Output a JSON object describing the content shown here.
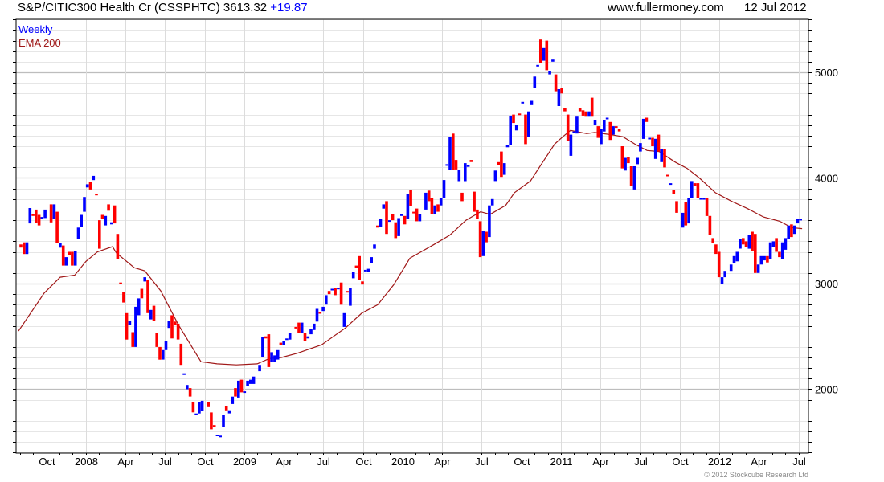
{
  "header": {
    "title": "S&P/CITIC300 Health Cr (CSSPHTC) 3613.32",
    "change": "+19.87",
    "site": "www.fullermoney.com",
    "date": "12 Jul 2012"
  },
  "legend": {
    "weekly": "Weekly",
    "ema": "EMA 200"
  },
  "copyright": "© 2012 Stockcube Research Ltd",
  "colors": {
    "up": "#0000ff",
    "down": "#ff0000",
    "ema": "#a01818",
    "change": "#0000ff"
  },
  "chart_data": {
    "type": "candlestick",
    "title": "S&P/CITIC300 Health Cr (CSSPHTC) 3613.32 +19.87",
    "ylim": [
      1395,
      5502
    ],
    "yticks": [
      2000,
      3000,
      4000,
      5000
    ],
    "ytick_labels": [
      "2000",
      "3000",
      "4000",
      "5000"
    ],
    "grid": true,
    "x_unit": "week index",
    "xlim": [
      -1.6,
      260.6
    ],
    "xtick_first_week": 8.4,
    "xtick_spacing_weeks": 13.1,
    "xtick_labels": [
      "Oct",
      "2008",
      "Apr",
      "Jul",
      "Oct",
      "2009",
      "Apr",
      "Jul",
      "Oct",
      "2010",
      "Apr",
      "Jul",
      "Oct",
      "2011",
      "Apr",
      "Jul",
      "Oct",
      "2012",
      "Apr",
      "Jul"
    ],
    "legend": [
      "Weekly",
      "EMA 200"
    ],
    "legend_placement": "top-left",
    "weekly_open_close": [
      [
        3370,
        3340
      ],
      [
        3390,
        3280
      ],
      [
        3280,
        3390
      ],
      [
        3570,
        3715
      ],
      [
        3660,
        3640
      ],
      [
        3700,
        3570
      ],
      [
        3650,
        3550
      ],
      [
        3610,
        3630
      ],
      [
        3620,
        3700
      ],
      null,
      [
        3750,
        3580
      ],
      [
        3610,
        3750
      ],
      [
        3680,
        3380
      ],
      [
        3340,
        3380
      ],
      [
        3360,
        3170
      ],
      [
        3170,
        3250
      ],
      [
        3300,
        3270
      ],
      [
        3300,
        3170
      ],
      [
        3170,
        3310
      ],
      [
        3420,
        3530
      ],
      [
        3540,
        3650
      ],
      [
        3680,
        3820
      ],
      [
        3910,
        3940
      ],
      [
        3960,
        3890
      ],
      [
        3980,
        4020
      ],
      [
        3850,
        3840
      ],
      [
        3600,
        3330
      ],
      [
        3650,
        3610
      ],
      [
        3550,
        3640
      ],
      [
        3750,
        3690
      ],
      [
        3560,
        3580
      ],
      [
        3740,
        3570
      ],
      [
        3470,
        3230
      ],
      [
        3010,
        3000
      ],
      [
        2920,
        2820
      ],
      [
        2720,
        2470
      ],
      [
        2610,
        2650
      ],
      [
        2540,
        2400
      ],
      [
        2400,
        2780
      ],
      [
        2700,
        2860
      ],
      [
        2950,
        2860
      ],
      [
        3020,
        3060
      ],
      [
        3030,
        2720
      ],
      [
        2660,
        2750
      ],
      [
        2790,
        2650
      ],
      [
        2530,
        2400
      ],
      [
        2400,
        2280
      ],
      [
        2280,
        2370
      ],
      [
        2370,
        2460
      ],
      [
        2580,
        2650
      ],
      [
        2700,
        2480
      ],
      [
        2640,
        2610
      ],
      [
        2620,
        2470
      ],
      [
        2430,
        2230
      ],
      [
        2140,
        2150
      ],
      [
        2000,
        2040
      ],
      [
        2010,
        1930
      ],
      [
        1880,
        1780
      ],
      [
        1760,
        1770
      ],
      [
        1770,
        1880
      ],
      [
        1790,
        1890
      ],
      null,
      [
        1880,
        1830
      ],
      [
        1780,
        1620
      ],
      [
        1660,
        1640
      ],
      [
        1560,
        1570
      ],
      [
        1550,
        1560
      ],
      [
        1640,
        1760
      ],
      [
        1840,
        1800
      ],
      [
        1770,
        1800
      ],
      [
        1860,
        1930
      ],
      [
        2010,
        1930
      ],
      [
        1920,
        2080
      ],
      [
        2090,
        1970
      ],
      [
        1970,
        1980
      ],
      [
        2030,
        2080
      ],
      [
        2050,
        2090
      ],
      [
        2050,
        2120
      ],
      null,
      [
        2170,
        2230
      ],
      [
        2300,
        2490
      ],
      [
        2500,
        2480
      ],
      [
        2520,
        2210
      ],
      [
        2260,
        2350
      ],
      [
        2260,
        2320
      ],
      [
        2280,
        2370
      ],
      [
        2440,
        2420
      ],
      [
        2420,
        2460
      ],
      [
        2470,
        2480
      ],
      [
        2470,
        2530
      ],
      null,
      [
        2590,
        2580
      ],
      [
        2630,
        2530
      ],
      [
        2530,
        2630
      ],
      [
        2530,
        2460
      ],
      [
        2480,
        2500
      ],
      [
        2520,
        2570
      ],
      [
        2560,
        2620
      ],
      [
        2640,
        2760
      ],
      [
        2730,
        2720
      ],
      [
        2740,
        2780
      ],
      [
        2800,
        2890
      ],
      [
        2930,
        2900
      ],
      [
        2940,
        2950
      ],
      [
        2960,
        2890
      ],
      [
        2950,
        2960
      ],
      [
        3010,
        2800
      ],
      [
        2590,
        2720
      ],
      [
        2930,
        2920
      ],
      [
        2790,
        2960
      ],
      [
        3050,
        3110
      ],
      [
        3170,
        3150
      ],
      [
        3260,
        3030
      ],
      [
        3020,
        2990
      ],
      [
        3120,
        3130
      ],
      [
        3110,
        3140
      ],
      [
        3190,
        3250
      ],
      [
        3330,
        3370
      ],
      [
        3550,
        3530
      ],
      [
        3540,
        3610
      ],
      [
        3710,
        3750
      ],
      [
        3780,
        3470
      ],
      [
        3590,
        3600
      ],
      [
        3660,
        3600
      ],
      [
        3580,
        3430
      ],
      [
        3450,
        3620
      ],
      [
        3640,
        3660
      ],
      [
        3640,
        3560
      ],
      [
        3610,
        3850
      ],
      [
        3890,
        3730
      ],
      [
        3680,
        3670
      ],
      [
        3710,
        3590
      ],
      [
        3590,
        3660
      ],
      null,
      [
        3700,
        3860
      ],
      [
        3880,
        3780
      ],
      [
        3810,
        3660
      ],
      [
        3660,
        3740
      ],
      [
        3750,
        3680
      ],
      [
        3740,
        3810
      ],
      [
        3810,
        3980
      ],
      [
        4120,
        4130
      ],
      [
        4080,
        4390
      ],
      [
        4420,
        4080
      ],
      [
        4170,
        4080
      ],
      [
        3970,
        4080
      ],
      [
        3860,
        3780
      ],
      [
        3970,
        4140
      ],
      [
        4110,
        4120
      ],
      [
        4170,
        4150
      ],
      [
        3870,
        3680
      ],
      [
        3700,
        3610
      ],
      [
        3590,
        3250
      ],
      [
        3260,
        3500
      ],
      [
        3490,
        3390
      ],
      [
        3440,
        3740
      ],
      [
        3740,
        3800
      ],
      [
        3970,
        4070
      ],
      [
        4150,
        4120
      ],
      [
        4250,
        4010
      ],
      [
        4030,
        4140
      ],
      [
        4290,
        4310
      ],
      [
        4310,
        4590
      ],
      [
        4600,
        4520
      ],
      [
        4450,
        4500
      ],
      [
        4610,
        4600
      ],
      [
        4710,
        4720
      ],
      [
        4600,
        4320
      ],
      [
        4390,
        4630
      ],
      [
        4690,
        4730
      ],
      [
        4850,
        4960
      ],
      [
        5060,
        5070
      ],
      [
        5310,
        5090
      ],
      [
        5110,
        5230
      ],
      [
        5300,
        5020
      ],
      [
        4980,
        5010
      ],
      [
        5100,
        5120
      ],
      [
        4980,
        4820
      ],
      [
        4680,
        4840
      ],
      [
        4850,
        4800
      ],
      [
        4660,
        4630
      ],
      [
        4600,
        4350
      ],
      [
        4210,
        4410
      ],
      [
        4430,
        4440
      ],
      [
        4420,
        4580
      ],
      [
        4660,
        4630
      ],
      [
        4640,
        4590
      ],
      [
        4630,
        4580
      ],
      [
        4580,
        4630
      ],
      [
        4760,
        4580
      ],
      [
        4500,
        4550
      ],
      [
        4490,
        4380
      ],
      [
        4320,
        4460
      ],
      [
        4440,
        4550
      ],
      [
        4560,
        4570
      ],
      [
        4530,
        4360
      ],
      [
        4410,
        4490
      ],
      [
        4490,
        4480
      ],
      [
        4460,
        4440
      ],
      [
        4300,
        4090
      ],
      [
        4070,
        4190
      ],
      [
        4200,
        4140
      ],
      [
        4110,
        3920
      ],
      [
        3890,
        4110
      ],
      [
        4130,
        4190
      ],
      [
        4250,
        4330
      ],
      [
        4370,
        4560
      ],
      [
        4570,
        4530
      ],
      [
        4370,
        4380
      ],
      [
        4380,
        4300
      ],
      [
        4180,
        4370
      ],
      [
        4410,
        4250
      ],
      [
        4150,
        4270
      ],
      [
        4270,
        4100
      ],
      [
        4030,
        4020
      ],
      [
        3940,
        3950
      ],
      [
        3890,
        3850
      ],
      [
        3780,
        3670
      ],
      null,
      [
        3530,
        3670
      ],
      [
        3770,
        3550
      ],
      [
        3570,
        3810
      ],
      [
        3810,
        3970
      ],
      [
        3950,
        3920
      ],
      [
        3950,
        3810
      ],
      [
        3800,
        3810
      ],
      [
        3800,
        3810
      ],
      [
        3810,
        3640
      ],
      [
        3640,
        3460
      ],
      [
        3430,
        3380
      ],
      [
        3370,
        3280
      ],
      [
        3300,
        3060
      ],
      [
        3000,
        3060
      ],
      [
        3060,
        3120
      ],
      null,
      [
        3120,
        3180
      ],
      [
        3190,
        3260
      ],
      [
        3210,
        3300
      ],
      [
        3330,
        3420
      ],
      [
        3430,
        3370
      ],
      [
        3400,
        3350
      ],
      [
        3330,
        3460
      ],
      [
        3490,
        3310
      ],
      [
        3470,
        3100
      ],
      [
        3100,
        3180
      ],
      [
        3180,
        3260
      ],
      [
        3220,
        3260
      ],
      [
        3260,
        3200
      ],
      [
        3230,
        3390
      ],
      [
        3350,
        3400
      ],
      [
        3430,
        3300
      ],
      [
        3300,
        3250
      ],
      [
        3230,
        3390
      ],
      [
        3320,
        3430
      ],
      [
        3420,
        3550
      ],
      [
        3560,
        3440
      ],
      [
        3470,
        3550
      ],
      [
        3570,
        3610
      ],
      [
        3600,
        3613
      ]
    ],
    "ema200": [
      [
        -0.8,
        2550
      ],
      [
        7.7,
        2910
      ],
      [
        13,
        3060
      ],
      [
        17.8,
        3080
      ],
      [
        21.5,
        3210
      ],
      [
        25.3,
        3300
      ],
      [
        30.3,
        3350
      ],
      [
        31.6,
        3290
      ],
      [
        37.5,
        3150
      ],
      [
        41,
        3120
      ],
      [
        46.3,
        2930
      ],
      [
        52.1,
        2610
      ],
      [
        59.6,
        2260
      ],
      [
        64.9,
        2240
      ],
      [
        71.3,
        2230
      ],
      [
        78.2,
        2240
      ],
      [
        82.2,
        2290
      ],
      [
        86.2,
        2300
      ],
      [
        91.5,
        2340
      ],
      [
        99.5,
        2420
      ],
      [
        107.4,
        2580
      ],
      [
        112.8,
        2720
      ],
      [
        118.1,
        2800
      ],
      [
        123.4,
        2990
      ],
      [
        128.7,
        3240
      ],
      [
        136.7,
        3370
      ],
      [
        142,
        3460
      ],
      [
        147.3,
        3600
      ],
      [
        152.1,
        3680
      ],
      [
        155.3,
        3655
      ],
      [
        160.4,
        3740
      ],
      [
        163.3,
        3860
      ],
      [
        168.6,
        3970
      ],
      [
        171.3,
        4090
      ],
      [
        176.6,
        4320
      ],
      [
        179.3,
        4390
      ],
      [
        181.9,
        4450
      ],
      [
        187.2,
        4420
      ],
      [
        189.9,
        4430
      ],
      [
        195.2,
        4410
      ],
      [
        199.2,
        4390
      ],
      [
        203.2,
        4320
      ],
      [
        207.2,
        4260
      ],
      [
        211.2,
        4250
      ],
      [
        216.5,
        4150
      ],
      [
        220.5,
        4090
      ],
      [
        224.5,
        4000
      ],
      [
        229.8,
        3860
      ],
      [
        235.1,
        3780
      ],
      [
        240.4,
        3710
      ],
      [
        245.7,
        3630
      ],
      [
        251.1,
        3590
      ],
      [
        255,
        3530
      ],
      [
        258.5,
        3520
      ]
    ]
  }
}
